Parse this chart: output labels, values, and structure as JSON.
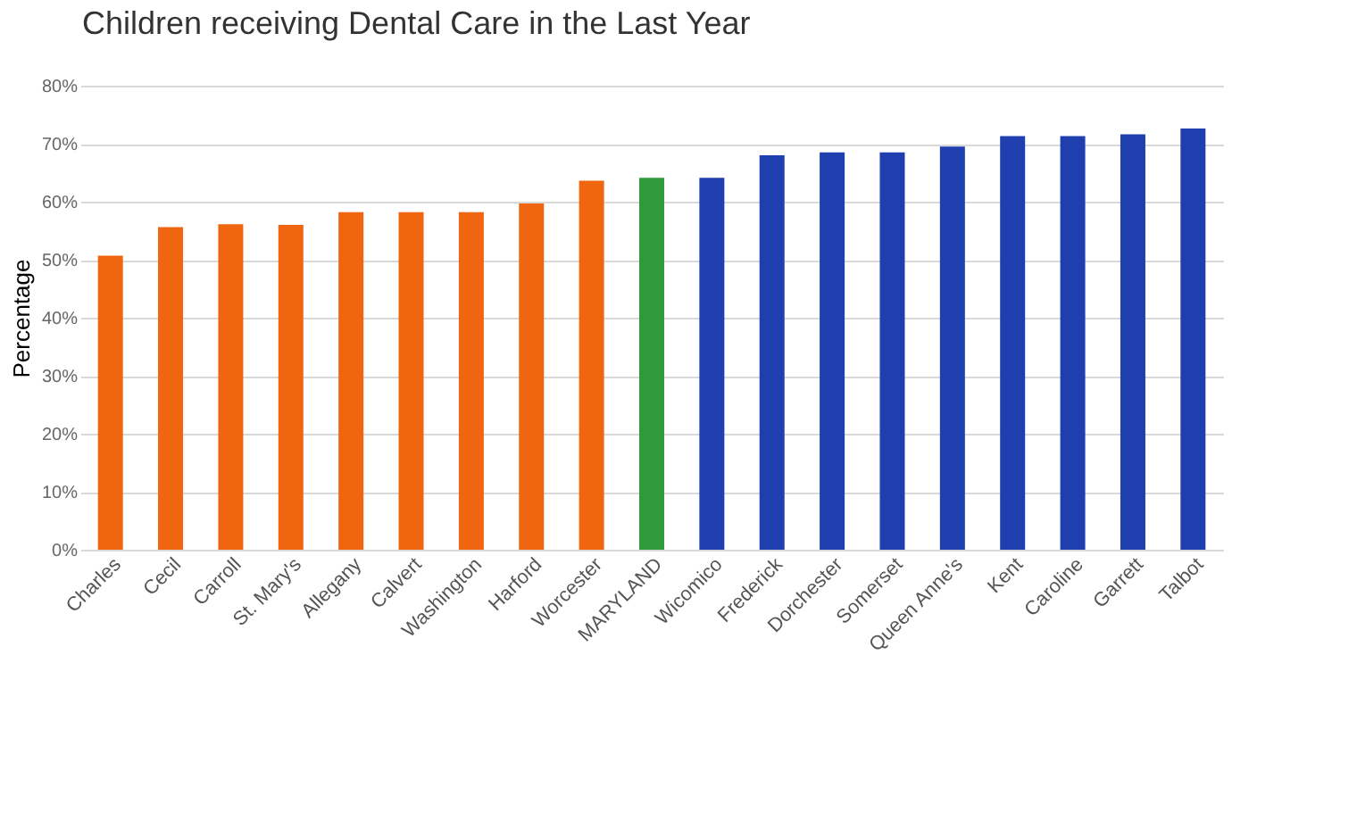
{
  "chart_data": {
    "type": "bar",
    "title": "Children receiving Dental Care in the Last Year",
    "ylabel": "Percentage",
    "categories": [
      "Charles",
      "Cecil",
      "Carroll",
      "St. Mary's",
      "Allegany",
      "Calvert",
      "Washington",
      "Harford",
      "Worcester",
      "MARYLAND",
      "Wicomico",
      "Frederick",
      "Dorchester",
      "Somerset",
      "Queen Anne's",
      "Kent",
      "Caroline",
      "Garrett",
      "Talbot"
    ],
    "values": [
      50.7,
      55.6,
      56.1,
      56,
      58.2,
      58.2,
      58.2,
      59.7,
      63.6,
      64.1,
      64.1,
      68,
      68.5,
      68.5,
      69.5,
      71.3,
      71.3,
      71.6,
      72.6
    ],
    "colors": [
      "#f0650f",
      "#f0650f",
      "#f0650f",
      "#f0650f",
      "#f0650f",
      "#f0650f",
      "#f0650f",
      "#f0650f",
      "#f0650f",
      "#2e9a3a",
      "#1f3fae",
      "#1f3fae",
      "#1f3fae",
      "#1f3fae",
      "#1f3fae",
      "#1f3fae",
      "#1f3fae",
      "#1f3fae",
      "#1f3fae"
    ],
    "ylim": [
      0,
      80
    ],
    "yticks": [
      {
        "value": 0,
        "label": "0%"
      },
      {
        "value": 10,
        "label": "10%"
      },
      {
        "value": 20,
        "label": "20%"
      },
      {
        "value": 30,
        "label": "30%"
      },
      {
        "value": 40,
        "label": "40%"
      },
      {
        "value": 50,
        "label": "50%"
      },
      {
        "value": 60,
        "label": "60%"
      },
      {
        "value": 70,
        "label": "70%"
      },
      {
        "value": 80,
        "label": "80%"
      }
    ],
    "grid": "y"
  }
}
